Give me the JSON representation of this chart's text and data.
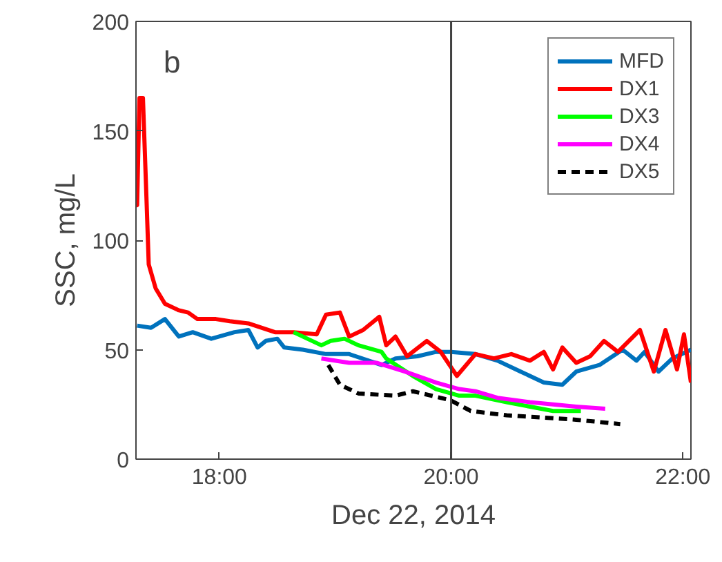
{
  "chart_data": {
    "type": "line",
    "xlabel": "Dec 22, 2014",
    "ylabel": "SSC, mg/L",
    "annotations": [
      "b"
    ],
    "xlim": [
      17.28,
      22.07
    ],
    "ylim": [
      0,
      200
    ],
    "xticks": [
      {
        "value": 18,
        "label": "18:00"
      },
      {
        "value": 20,
        "label": "20:00"
      },
      {
        "value": 22,
        "label": "22:00"
      }
    ],
    "yticks": [
      0,
      50,
      100,
      150,
      200
    ],
    "grid": false,
    "legend": "top right",
    "ref_lines": [
      {
        "axis": "x",
        "value": 20,
        "label": null,
        "color": "#404040"
      }
    ],
    "series": [
      {
        "name": "MFD",
        "color": "#0072bd",
        "line_style": "solid",
        "x": [
          17.29,
          17.41,
          17.53,
          17.65,
          17.77,
          17.93,
          18.13,
          18.25,
          18.33,
          18.4,
          18.5,
          18.56,
          18.72,
          18.92,
          19.12,
          19.4,
          19.52,
          19.71,
          19.87,
          20.0,
          20.21,
          20.4,
          20.6,
          20.8,
          20.96,
          21.08,
          21.28,
          21.48,
          21.6,
          21.67,
          21.79,
          21.91,
          22.07
        ],
        "values": [
          61,
          60,
          64,
          56,
          58,
          55,
          58,
          59,
          51,
          54,
          55,
          51,
          50,
          48,
          48,
          43,
          46,
          47,
          49,
          49,
          48,
          45,
          40,
          35,
          34,
          40,
          43,
          50,
          45,
          49,
          40,
          46,
          50
        ]
      },
      {
        "name": "DX1",
        "color": "#ff0000",
        "line_style": "solid",
        "x": [
          17.28,
          17.29,
          17.31,
          17.34,
          17.37,
          17.39,
          17.45,
          17.53,
          17.65,
          17.73,
          17.81,
          17.97,
          18.09,
          18.25,
          18.48,
          18.64,
          18.84,
          18.92,
          19.04,
          19.12,
          19.24,
          19.38,
          19.44,
          19.52,
          19.62,
          19.79,
          19.91,
          20.05,
          20.21,
          20.37,
          20.52,
          20.68,
          20.8,
          20.88,
          20.96,
          21.08,
          21.2,
          21.32,
          21.44,
          21.63,
          21.75,
          21.85,
          21.95,
          22.01,
          22.07
        ],
        "values": [
          120,
          116,
          165,
          165,
          120,
          89,
          78,
          71,
          68,
          67,
          64,
          64,
          63,
          62,
          58,
          58,
          57,
          66,
          67,
          56,
          59,
          65,
          52,
          56,
          47,
          54,
          49,
          38,
          48,
          46,
          48,
          45,
          49,
          41,
          51,
          44,
          47,
          54,
          49,
          59,
          40,
          59,
          41,
          57,
          35
        ]
      },
      {
        "name": "DX3",
        "color": "#00ff00",
        "line_style": "solid",
        "x": [
          18.64,
          18.88,
          18.96,
          19.08,
          19.2,
          19.4,
          19.44,
          19.67,
          19.87,
          20.07,
          20.21,
          20.48,
          20.88,
          21.12
        ],
        "values": [
          58,
          52,
          54,
          55,
          52,
          49,
          46,
          38,
          32,
          29,
          29,
          26,
          22,
          22
        ]
      },
      {
        "name": "DX4",
        "color": "#ff00ff",
        "line_style": "solid",
        "x": [
          18.88,
          19.12,
          19.36,
          19.6,
          19.87,
          20.07,
          20.21,
          20.4,
          20.68,
          21.08,
          21.33
        ],
        "values": [
          46,
          44,
          44,
          40,
          35,
          32,
          31,
          28,
          26,
          24,
          23
        ]
      },
      {
        "name": "DX5",
        "color": "#000000",
        "line_style": "dashed",
        "x": [
          18.94,
          19.04,
          19.2,
          19.52,
          19.67,
          19.99,
          20.17,
          20.48,
          20.8,
          21.08,
          21.46
        ],
        "values": [
          43,
          34,
          30,
          29,
          31,
          27,
          22,
          20,
          19,
          18,
          16
        ]
      }
    ]
  }
}
